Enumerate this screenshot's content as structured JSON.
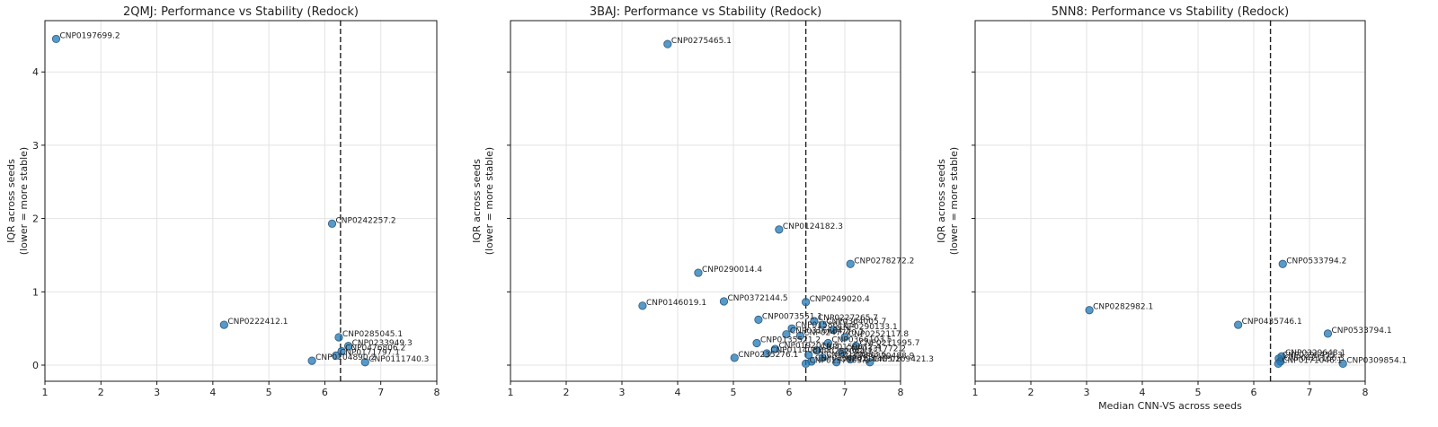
{
  "colors": {
    "point": "#1f77b4",
    "point_edge": "#2b5a80",
    "grid": "#e3e3e3",
    "threshold": "#222222",
    "text": "#222222"
  },
  "chart_data": [
    {
      "type": "scatter",
      "title": "2QMJ: Performance vs Stability (Redock)",
      "xlabel": "",
      "ylabel": "IQR across seeds",
      "ylabel2": "(lower = more stable)",
      "xlim": [
        1,
        8
      ],
      "ylim": [
        -0.22,
        4.7
      ],
      "xticks": [
        1,
        2,
        3,
        4,
        5,
        6,
        7,
        8
      ],
      "yticks": [
        0,
        1,
        2,
        3,
        4
      ],
      "show_yticklabels": true,
      "vline": 6.28,
      "grid": true,
      "points": [
        {
          "x": 1.2,
          "y": 4.45,
          "label": "CNP0197699.2"
        },
        {
          "x": 6.13,
          "y": 1.93,
          "label": "CNP0242257.2"
        },
        {
          "x": 4.2,
          "y": 0.55,
          "label": "CNP0222412.1"
        },
        {
          "x": 6.25,
          "y": 0.38,
          "label": "CNP0285045.1"
        },
        {
          "x": 6.42,
          "y": 0.26,
          "label": "CNP0233949.3"
        },
        {
          "x": 6.3,
          "y": 0.19,
          "label": "CNP0476806.2"
        },
        {
          "x": 6.2,
          "y": 0.13,
          "label": "CNP0171797.1"
        },
        {
          "x": 5.77,
          "y": 0.06,
          "label": "CNP0104890.2"
        },
        {
          "x": 6.72,
          "y": 0.04,
          "label": "CNP0111740.3"
        }
      ]
    },
    {
      "type": "scatter",
      "title": "3BAJ: Performance vs Stability (Redock)",
      "xlabel": "",
      "ylabel": "IQR across seeds",
      "ylabel2": "(lower = more stable)",
      "xlim": [
        1,
        8
      ],
      "ylim": [
        -0.22,
        4.7
      ],
      "xticks": [
        1,
        2,
        3,
        4,
        5,
        6,
        7,
        8
      ],
      "yticks": [
        0,
        1,
        2,
        3,
        4
      ],
      "show_yticklabels": false,
      "vline": 6.3,
      "grid": true,
      "points": [
        {
          "x": 3.82,
          "y": 4.38,
          "label": "CNP0275465.1"
        },
        {
          "x": 5.82,
          "y": 1.85,
          "label": "CNP0124182.3"
        },
        {
          "x": 7.1,
          "y": 1.38,
          "label": "CNP0278272.2"
        },
        {
          "x": 4.37,
          "y": 1.26,
          "label": "CNP0290014.4"
        },
        {
          "x": 4.83,
          "y": 0.87,
          "label": "CNP0372144.5"
        },
        {
          "x": 6.3,
          "y": 0.86,
          "label": "CNP0249020.4"
        },
        {
          "x": 3.37,
          "y": 0.81,
          "label": "CNP0146019.1"
        },
        {
          "x": 5.45,
          "y": 0.62,
          "label": "CNP0073551.1"
        },
        {
          "x": 6.45,
          "y": 0.6,
          "label": "CNP0227265.7"
        },
        {
          "x": 6.6,
          "y": 0.55,
          "label": "CNP0364005.7"
        },
        {
          "x": 6.05,
          "y": 0.5,
          "label": "CNP0158612.3"
        },
        {
          "x": 6.8,
          "y": 0.48,
          "label": "CNP0290133.1"
        },
        {
          "x": 5.95,
          "y": 0.42,
          "label": "CNP0316684.2"
        },
        {
          "x": 6.2,
          "y": 0.4,
          "label": "CNP0247770.2"
        },
        {
          "x": 7.0,
          "y": 0.38,
          "label": "CNP0252117.8"
        },
        {
          "x": 5.42,
          "y": 0.3,
          "label": "CNP0135521.2"
        },
        {
          "x": 6.7,
          "y": 0.3,
          "label": "CNP0366103.5"
        },
        {
          "x": 7.2,
          "y": 0.26,
          "label": "CNP0211995.7"
        },
        {
          "x": 5.75,
          "y": 0.22,
          "label": "CNP0192016.3"
        },
        {
          "x": 6.5,
          "y": 0.2,
          "label": "CNP0159012.4"
        },
        {
          "x": 6.95,
          "y": 0.18,
          "label": "CNP0331772.2"
        },
        {
          "x": 5.6,
          "y": 0.16,
          "label": "CNP0114082.5"
        },
        {
          "x": 6.35,
          "y": 0.14,
          "label": "CNP0252044.1"
        },
        {
          "x": 5.02,
          "y": 0.1,
          "label": "CNP0235276.1"
        },
        {
          "x": 6.6,
          "y": 0.1,
          "label": "CNP0180933.6"
        },
        {
          "x": 7.1,
          "y": 0.08,
          "label": "CNP0320488.9"
        },
        {
          "x": 6.4,
          "y": 0.05,
          "label": "CNP0266201.3"
        },
        {
          "x": 6.85,
          "y": 0.04,
          "label": "CNP0210455.2"
        },
        {
          "x": 7.45,
          "y": 0.04,
          "label": "CNP0109421.3"
        },
        {
          "x": 6.3,
          "y": 0.02,
          "label": "CNP0157703.1"
        }
      ]
    },
    {
      "type": "scatter",
      "title": "5NN8: Performance vs Stability (Redock)",
      "xlabel": "Median CNN-VS across seeds",
      "ylabel": "IQR across seeds",
      "ylabel2": "(lower = more stable)",
      "xlim": [
        1,
        8
      ],
      "ylim": [
        -0.22,
        4.7
      ],
      "xticks": [
        1,
        2,
        3,
        4,
        5,
        6,
        7,
        8
      ],
      "yticks": [
        0,
        1,
        2,
        3,
        4
      ],
      "show_yticklabels": false,
      "vline": 6.3,
      "grid": true,
      "points": [
        {
          "x": 6.52,
          "y": 1.38,
          "label": "CNP0533794.2"
        },
        {
          "x": 3.05,
          "y": 0.75,
          "label": "CNP0282982.1"
        },
        {
          "x": 5.72,
          "y": 0.55,
          "label": "CNP0435746.1"
        },
        {
          "x": 7.33,
          "y": 0.43,
          "label": "CNP0533794.1"
        },
        {
          "x": 6.5,
          "y": 0.12,
          "label": "CNP0329648.1"
        },
        {
          "x": 6.45,
          "y": 0.09,
          "label": "CNP0296453.3"
        },
        {
          "x": 6.48,
          "y": 0.05,
          "label": "CNP0421166.3"
        },
        {
          "x": 6.44,
          "y": 0.02,
          "label": "CNP0171046.1"
        },
        {
          "x": 7.6,
          "y": 0.02,
          "label": "CNP0309854.1"
        }
      ]
    }
  ]
}
